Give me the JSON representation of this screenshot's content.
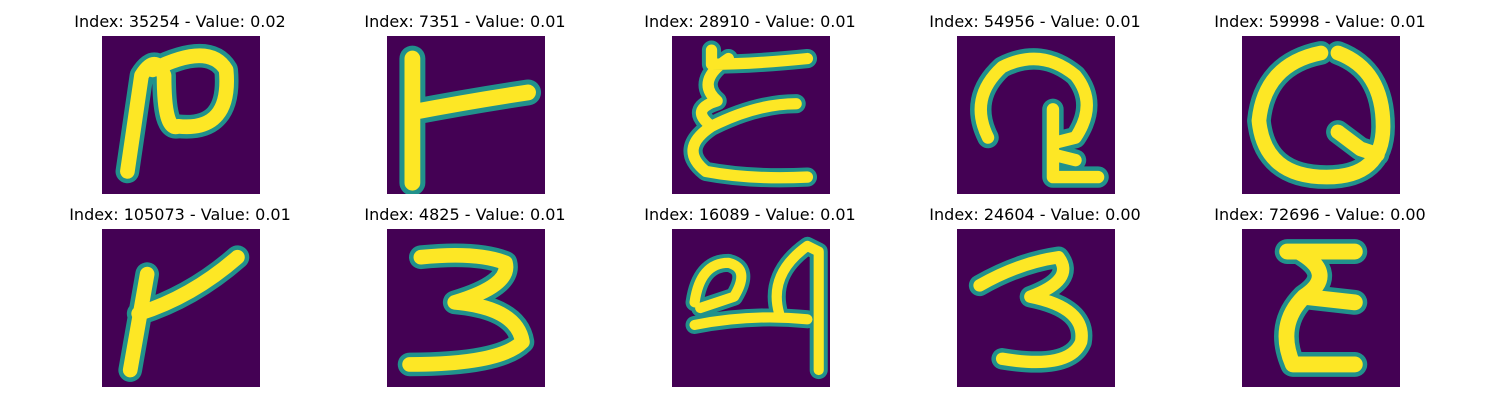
{
  "colors": {
    "background": "#440154",
    "stroke_mid": "#21918c",
    "stroke_main": "#fde725"
  },
  "panels": [
    {
      "title": "Index: 35254 - Value: 0.02",
      "glyph": "handwritten-n-like"
    },
    {
      "title": "Index: 7351 - Value: 0.01",
      "glyph": "handwritten-r-like"
    },
    {
      "title": "Index: 28910 - Value: 0.01",
      "glyph": "handwritten-E-like"
    },
    {
      "title": "Index: 54956 - Value: 0.01",
      "glyph": "handwritten-a-like"
    },
    {
      "title": "Index: 59998 - Value: 0.01",
      "glyph": "handwritten-Q-like"
    },
    {
      "title": "Index: 105073 - Value: 0.01",
      "glyph": "handwritten-r-like"
    },
    {
      "title": "Index: 4825 - Value: 0.01",
      "glyph": "handwritten-3"
    },
    {
      "title": "Index: 16089 - Value: 0.01",
      "glyph": "handwritten-a-like"
    },
    {
      "title": "Index: 24604 - Value: 0.00",
      "glyph": "handwritten-3"
    },
    {
      "title": "Index: 72696 - Value: 0.00",
      "glyph": "handwritten-E-like"
    }
  ]
}
